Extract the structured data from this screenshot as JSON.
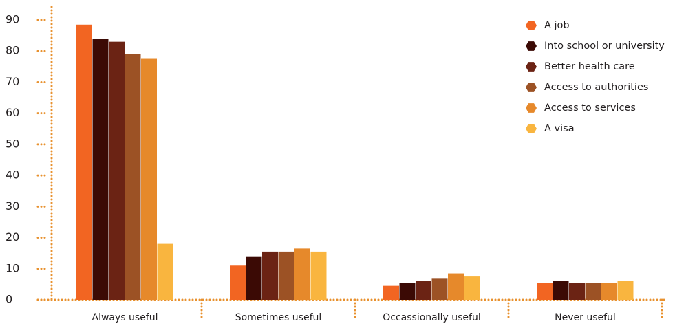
{
  "chart_data": {
    "type": "bar",
    "categories": [
      "Always useful",
      "Sometimes useful",
      "Occassionally useful",
      "Never useful"
    ],
    "series": [
      {
        "name": "A job",
        "color": "#f26522",
        "values": [
          88.5,
          11,
          4.5,
          5.5
        ]
      },
      {
        "name": "Into school or university",
        "color": "#3b0a05",
        "values": [
          84,
          14,
          5.5,
          6
        ]
      },
      {
        "name": "Better health care",
        "color": "#6b2314",
        "values": [
          83,
          15.5,
          6,
          5.5
        ]
      },
      {
        "name": "Access to authorities",
        "color": "#9c5225",
        "values": [
          79,
          15.5,
          7,
          5.5
        ]
      },
      {
        "name": "Access to services",
        "color": "#e6892b",
        "values": [
          77.5,
          16.5,
          8.5,
          5.5
        ]
      },
      {
        "name": "A visa",
        "color": "#f9b53f",
        "values": [
          18,
          15.5,
          7.5,
          6
        ]
      }
    ],
    "ylim": [
      0,
      90
    ],
    "yticks": [
      0,
      10,
      20,
      30,
      40,
      50,
      60,
      70,
      80,
      90
    ],
    "legend": "upper right"
  }
}
